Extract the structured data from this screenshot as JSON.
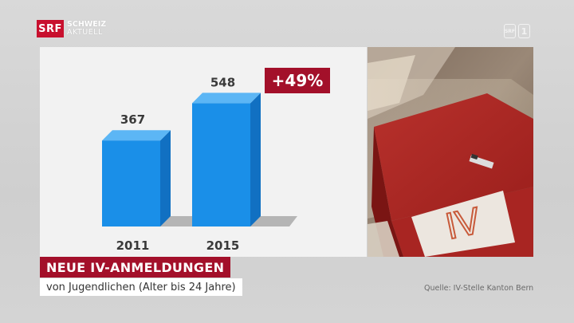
{
  "logo": {
    "box": "SRF",
    "line1": "SCHWEIZ",
    "line2": "AKTUELL"
  },
  "channel": {
    "glyphs": [
      "SRF",
      "1"
    ]
  },
  "badge": "+49%",
  "caption": {
    "title": "NEUE IV-ANMELDUNGEN",
    "subtitle": "von Jugendlichen (Alter bis 24 Jahre)",
    "source": "Quelle: IV-Stelle Kanton Bern"
  },
  "photo": {
    "label": "IV"
  },
  "colors": {
    "bar": "#1a8fe8",
    "bar_top": "#5cb6f5",
    "bar_side": "#1170c2",
    "shadow": "#b5b5b5",
    "accent": "#a3102a"
  },
  "chart_data": {
    "type": "bar",
    "categories": [
      "2011",
      "2015"
    ],
    "values": [
      367,
      548
    ],
    "title": "",
    "xlabel": "",
    "ylabel": "",
    "ylim": [
      0,
      600
    ],
    "annotations": [
      "+49%"
    ],
    "grid": false,
    "legend": "none"
  }
}
